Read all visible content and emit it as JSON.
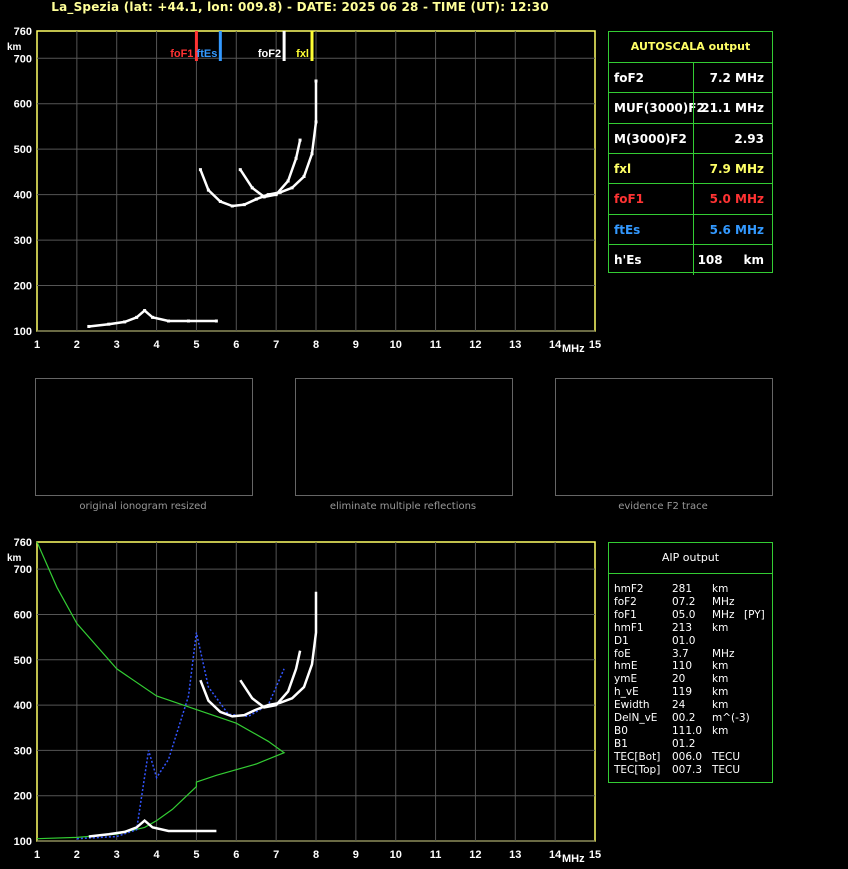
{
  "header": {
    "title": "La_Spezia (lat: +44.1, lon: 009.8) - DATE: 2025 06 28 - TIME (UT): 12:30"
  },
  "axes": {
    "km_label": "km",
    "mhz_label": "MHz",
    "y_ticks": [
      "760",
      "700",
      "600",
      "500",
      "400",
      "300",
      "200",
      "100"
    ],
    "x_ticks": [
      "1",
      "2",
      "3",
      "4",
      "5",
      "6",
      "7",
      "8",
      "9",
      "10",
      "11",
      "12",
      "13",
      "14",
      "15"
    ]
  },
  "markers": [
    {
      "label": "foF1",
      "value": 5.0,
      "color": "#ff3333"
    },
    {
      "label": "ftEs",
      "value": 5.6,
      "color": "#3399ff"
    },
    {
      "label": "foF2",
      "value": 7.2,
      "color": "#ffffff"
    },
    {
      "label": "fxl",
      "value": 7.9,
      "color": "#ffff33"
    }
  ],
  "autoscala": {
    "title": "AUTOSCALA output",
    "rows": [
      {
        "key": "foF2",
        "value": "7.2 MHz",
        "color": "#ffffff"
      },
      {
        "key": "MUF(3000)F2",
        "value": "21.1 MHz",
        "color": "#ffffff"
      },
      {
        "key": "M(3000)F2",
        "value": "2.93",
        "color": "#ffffff"
      },
      {
        "key": "fxl",
        "value": "7.9 MHz",
        "color": "#ffff66"
      },
      {
        "key": "foF1",
        "value": "5.0 MHz",
        "color": "#ff3333"
      },
      {
        "key": "ftEs",
        "value": "5.6 MHz",
        "color": "#3399ff"
      },
      {
        "key": "h'Es",
        "value": "108",
        "unit": "km",
        "color": "#ffffff"
      }
    ]
  },
  "captions": [
    "original ionogram resized",
    "eliminate multiple reflections",
    "evidence F2 trace"
  ],
  "aip": {
    "title": "AIP output",
    "rows": [
      {
        "k": "hmF2",
        "v": "281",
        "u": "km",
        "x": ""
      },
      {
        "k": "foF2",
        "v": "07.2",
        "u": "MHz",
        "x": ""
      },
      {
        "k": "foF1",
        "v": "05.0",
        "u": "MHz",
        "x": "[PY]"
      },
      {
        "k": "hmF1",
        "v": "213",
        "u": "km",
        "x": ""
      },
      {
        "k": "D1",
        "v": "01.0",
        "u": "",
        "x": ""
      },
      {
        "k": "foE",
        "v": "3.7",
        "u": "MHz",
        "x": ""
      },
      {
        "k": "hmE",
        "v": "110",
        "u": "km",
        "x": ""
      },
      {
        "k": "ymE",
        "v": "20",
        "u": "km",
        "x": ""
      },
      {
        "k": "h_vE",
        "v": "119",
        "u": "km",
        "x": ""
      },
      {
        "k": "Ewidth",
        "v": "24",
        "u": "km",
        "x": ""
      },
      {
        "k": "DelN_vE",
        "v": "00.2",
        "u": "m^(-3)",
        "x": ""
      },
      {
        "k": "B0",
        "v": "111.0",
        "u": "km",
        "x": ""
      },
      {
        "k": "B1",
        "v": "01.2",
        "u": "",
        "x": ""
      },
      {
        "k": "TEC[Bot]",
        "v": "006.0",
        "u": "TECU",
        "x": ""
      },
      {
        "k": "TEC[Top]",
        "v": "007.3",
        "u": "TECU",
        "x": ""
      }
    ]
  },
  "chart_data": [
    {
      "type": "scatter",
      "xlabel": "MHz",
      "ylabel": "km",
      "xlim": [
        1,
        15
      ],
      "ylim": [
        100,
        760
      ],
      "grid": true,
      "series": [
        {
          "values": [
            [
              2.3,
              110
            ],
            [
              2.8,
              115
            ],
            [
              3.2,
              120
            ],
            [
              3.5,
              130
            ],
            [
              3.7,
              145
            ],
            [
              3.9,
              130
            ],
            [
              4.3,
              122
            ],
            [
              4.8,
              122
            ],
            [
              5.5,
              122
            ]
          ]
        },
        {
          "values": [
            [
              5.1,
              455
            ],
            [
              5.3,
              410
            ],
            [
              5.6,
              385
            ],
            [
              5.9,
              375
            ],
            [
              6.2,
              378
            ],
            [
              6.5,
              390
            ],
            [
              6.8,
              400
            ],
            [
              7.1,
              405
            ],
            [
              7.4,
              415
            ],
            [
              7.7,
              440
            ],
            [
              7.9,
              490
            ],
            [
              8.0,
              560
            ],
            [
              8.0,
              650
            ]
          ]
        },
        {
          "values": [
            [
              6.1,
              455
            ],
            [
              6.4,
              415
            ],
            [
              6.7,
              395
            ],
            [
              7.0,
              400
            ],
            [
              7.3,
              430
            ],
            [
              7.5,
              480
            ],
            [
              7.6,
              520
            ]
          ]
        }
      ]
    },
    {
      "type": "line",
      "xlabel": "MHz",
      "ylabel": "km",
      "xlim": [
        1,
        15
      ],
      "ylim": [
        100,
        760
      ],
      "grid": true,
      "series": [
        {
          "values": [
            [
              1.0,
              760
            ],
            [
              1.5,
              660
            ],
            [
              2.0,
              580
            ],
            [
              3.0,
              480
            ],
            [
              4.0,
              420
            ],
            [
              5.0,
              390
            ],
            [
              6.0,
              360
            ],
            [
              6.8,
              320
            ],
            [
              7.2,
              295
            ],
            [
              6.5,
              270
            ],
            [
              5.5,
              245
            ],
            [
              5.0,
              230
            ],
            [
              5.0,
              220
            ],
            [
              4.4,
              170
            ],
            [
              4.0,
              145
            ],
            [
              3.7,
              130
            ],
            [
              3.0,
              115
            ],
            [
              2.0,
              108
            ],
            [
              1.0,
              105
            ]
          ]
        },
        {
          "values": [
            [
              2.0,
              105
            ],
            [
              3.0,
              110
            ],
            [
              3.5,
              125
            ],
            [
              3.8,
              300
            ],
            [
              4.0,
              240
            ],
            [
              4.3,
              280
            ],
            [
              4.8,
              420
            ],
            [
              5.0,
              560
            ],
            [
              5.3,
              440
            ],
            [
              5.8,
              380
            ],
            [
              6.3,
              375
            ],
            [
              6.8,
              400
            ],
            [
              7.2,
              480
            ]
          ]
        }
      ]
    }
  ]
}
